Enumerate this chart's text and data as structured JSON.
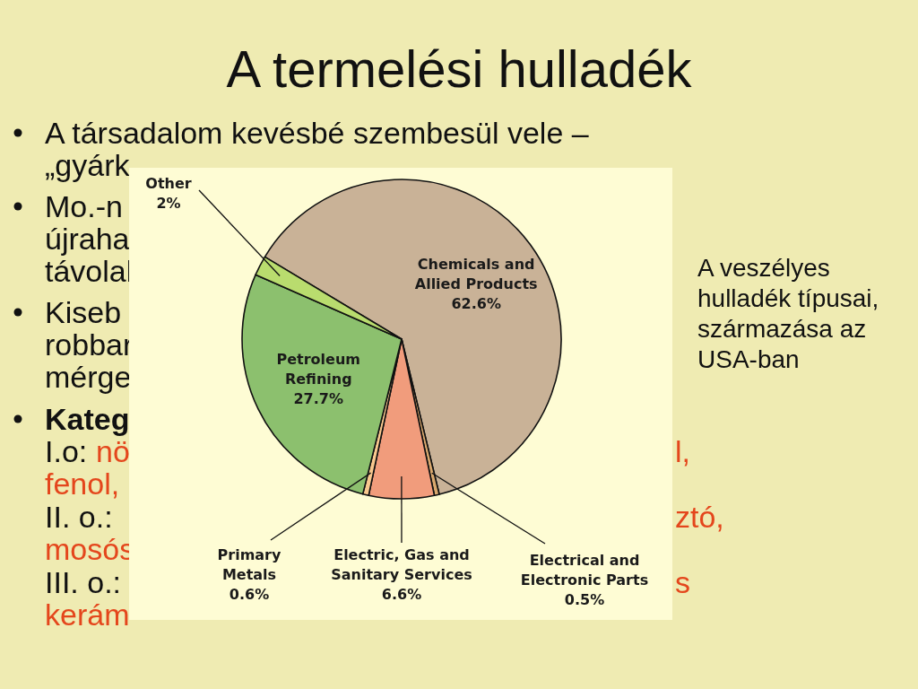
{
  "chart_data": {
    "type": "pie",
    "title": "A termelési hulladék",
    "categories": [
      "Chemicals and Allied Products",
      "Electrical and Electronic Parts",
      "Electric, Gas and Sanitary Services",
      "Primary Metals",
      "Petroleum Refining",
      "Other"
    ],
    "values": [
      62.6,
      0.5,
      6.6,
      0.6,
      27.7,
      2
    ],
    "value_labels": [
      "62.6%",
      "0.5%",
      "6.6%",
      "0.6%",
      "27.7%",
      "2%"
    ],
    "colors": [
      "#c9b297",
      "#d9a86e",
      "#f19c7c",
      "#f9c88e",
      "#8cc06e",
      "#b9dc6e"
    ],
    "annotations": [
      "A társadalom kevésbé szembesül vele –",
      "„gyárk",
      "Mo.-n",
      "újraha",
      "távolal",
      "Kiseb",
      "robbar",
      "mérge",
      "Kateg",
      "I.o:",
      "nö",
      "l,",
      "fenol,",
      "II. o.:",
      "ztó,",
      "mosós",
      "III. o.:",
      "s",
      "kerám",
      "A veszélyes hulladék típusai, származása az USA-ban"
    ]
  }
}
